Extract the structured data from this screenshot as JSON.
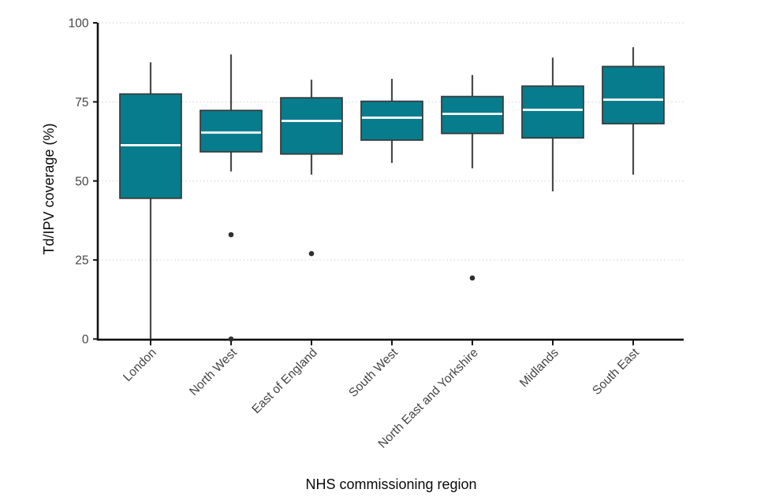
{
  "chart_data": {
    "type": "boxplot",
    "title": "",
    "xlabel": "NHS commissioning region",
    "ylabel": "Td/IPV coverage (%)",
    "ylim": [
      0,
      100
    ],
    "yticks": [
      0,
      25,
      50,
      75,
      100
    ],
    "grid": "horizontal dotted gridlines at 25, 50, 75, 100",
    "legend": "none",
    "categories": [
      "London",
      "North West",
      "East of England",
      "South West",
      "North East and Yorkshire",
      "Midlands",
      "South East"
    ],
    "series": [
      {
        "name": "London",
        "low": 0,
        "q1": 44.5,
        "median": 61.3,
        "q3": 77.5,
        "high": 87.5,
        "outliers": []
      },
      {
        "name": "North West",
        "low": 53,
        "q1": 59.2,
        "median": 65.3,
        "q3": 72.3,
        "high": 90,
        "outliers": [
          33,
          0
        ]
      },
      {
        "name": "East of England",
        "low": 52,
        "q1": 58.5,
        "median": 69,
        "q3": 76.3,
        "high": 82,
        "outliers": [
          27
        ]
      },
      {
        "name": "South West",
        "low": 55.7,
        "q1": 62.9,
        "median": 70,
        "q3": 75.2,
        "high": 82.3,
        "outliers": []
      },
      {
        "name": "North East and Yorkshire",
        "low": 54,
        "q1": 65,
        "median": 71.2,
        "q3": 76.7,
        "high": 83.5,
        "outliers": [
          19.3
        ]
      },
      {
        "name": "Midlands",
        "low": 46.7,
        "q1": 63.6,
        "median": 72.5,
        "q3": 80,
        "high": 89,
        "outliers": []
      },
      {
        "name": "South East",
        "low": 52,
        "q1": 68.1,
        "median": 75.7,
        "q3": 86.2,
        "high": 92.3,
        "outliers": []
      }
    ],
    "colors": {
      "box_fill": "#077C8C",
      "box_border": "#383838",
      "median": "#FFFFFF",
      "whisker": "#4A4A4A",
      "outlier": "#2F2F2F",
      "gridline": "#E2E2E2",
      "axis": "#141414",
      "tick_label": "#454545",
      "axis_title": "#0A0A0A",
      "background": "#FFFFFF"
    }
  }
}
